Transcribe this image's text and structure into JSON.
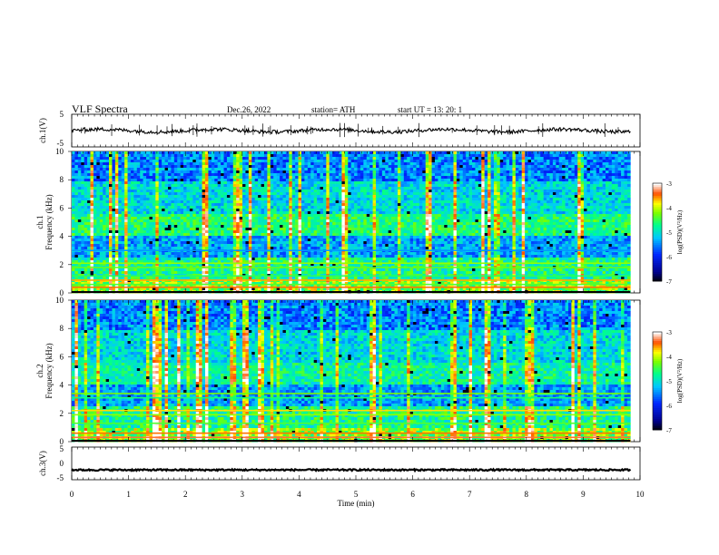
{
  "header": {
    "title": "VLF  Spectra",
    "date": "Dec.26, 2022",
    "station": "station= ATH",
    "start": "start  UT  =     13: 20: 1"
  },
  "chart_data": [
    {
      "type": "line",
      "panel": "ch1-waveform",
      "ylabel": "ch.1(V)",
      "ylim": [
        -5,
        5
      ],
      "yticks": [
        "5",
        "-5"
      ],
      "xlim": [
        0,
        10
      ],
      "approx_level_V": 0,
      "color": "#000000"
    },
    {
      "type": "heatmap",
      "panel": "ch1-spectrogram",
      "ylabel": "ch.1\nFrequency (kHz)",
      "ylim": [
        0,
        10
      ],
      "yticks": [
        "0",
        "2",
        "4",
        "6",
        "8",
        "10"
      ],
      "xlim": [
        0,
        10
      ],
      "data_extent_min": 9.83,
      "colorbar": {
        "label": "log(PSD)(V²/Hz)",
        "ticks": [
          "-3",
          "-4",
          "-5",
          "-6",
          "-7"
        ],
        "range": [
          -7,
          -3
        ]
      }
    },
    {
      "type": "heatmap",
      "panel": "ch2-spectrogram",
      "ylabel": "ch.2\nFrequency (kHz)",
      "ylim": [
        0,
        10
      ],
      "yticks": [
        "0",
        "2",
        "4",
        "6",
        "8",
        "10"
      ],
      "xlim": [
        0,
        10
      ],
      "data_extent_min": 9.83,
      "colorbar": {
        "label": "log(PSD)(V²/Hz)",
        "ticks": [
          "-3",
          "-4",
          "-5",
          "-6",
          "-7"
        ],
        "range": [
          -7,
          -3
        ]
      }
    },
    {
      "type": "line",
      "panel": "ch3-waveform",
      "ylabel": "ch.3(V)",
      "ylim": [
        -5,
        5
      ],
      "yticks": [
        "5",
        "0",
        "-5"
      ],
      "xlim": [
        0,
        10
      ],
      "approx_level_V": -2,
      "color": "#000000"
    }
  ],
  "xaxis": {
    "label": "Time  (min)",
    "ticks": [
      "0",
      "1",
      "2",
      "3",
      "4",
      "5",
      "6",
      "7",
      "8",
      "9",
      "10"
    ]
  }
}
